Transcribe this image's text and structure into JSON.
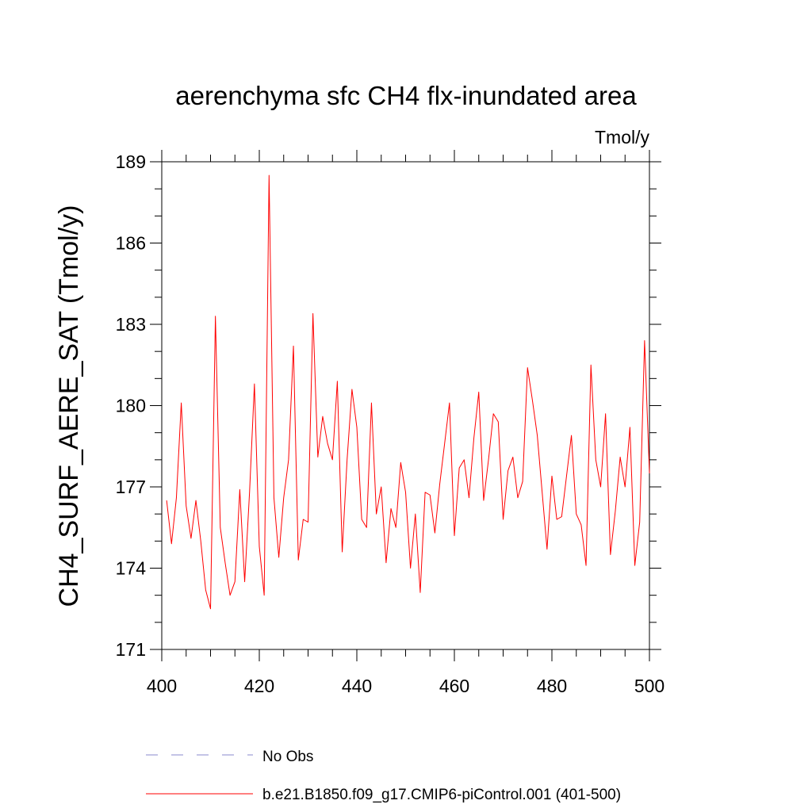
{
  "chart_data": {
    "type": "line",
    "title": "aerenchyma sfc CH4 flx-inundated area",
    "units": "Tmol/y",
    "xlabel": "",
    "ylabel": "CH4_SURF_AERE_SAT  (Tmol/y)",
    "xlim": [
      400,
      500
    ],
    "ylim": [
      171,
      189
    ],
    "xticks": [
      "400",
      "420",
      "440",
      "460",
      "480",
      "500"
    ],
    "yticks": [
      "171",
      "174",
      "177",
      "180",
      "183",
      "186",
      "189"
    ],
    "grid": false,
    "legend_position": "bottom-left",
    "series": [
      {
        "name": "b.e21.B1850.f09_g17.CMIP6-piControl.001 (401-500)",
        "color": "#ff0000",
        "style": "solid",
        "x": [
          401,
          402,
          403,
          404,
          405,
          406,
          407,
          408,
          409,
          410,
          411,
          412,
          413,
          414,
          415,
          416,
          417,
          418,
          419,
          420,
          421,
          422,
          423,
          424,
          425,
          426,
          427,
          428,
          429,
          430,
          431,
          432,
          433,
          434,
          435,
          436,
          437,
          438,
          439,
          440,
          441,
          442,
          443,
          444,
          445,
          446,
          447,
          448,
          449,
          450,
          451,
          452,
          453,
          454,
          455,
          456,
          457,
          458,
          459,
          460,
          461,
          462,
          463,
          464,
          465,
          466,
          467,
          468,
          469,
          470,
          471,
          472,
          473,
          474,
          475,
          476,
          477,
          478,
          479,
          480,
          481,
          482,
          483,
          484,
          485,
          486,
          487,
          488,
          489,
          490,
          491,
          492,
          493,
          494,
          495,
          496,
          497,
          498,
          499,
          500
        ],
        "values": [
          176.5,
          174.9,
          176.6,
          180.1,
          176.3,
          175.1,
          176.5,
          175.0,
          173.2,
          172.5,
          183.3,
          175.5,
          174.2,
          173.0,
          173.5,
          176.9,
          173.5,
          176.8,
          180.8,
          174.8,
          173.0,
          188.5,
          176.6,
          174.4,
          176.6,
          178.0,
          182.2,
          174.3,
          175.8,
          175.7,
          183.4,
          178.1,
          179.6,
          178.6,
          178.0,
          180.9,
          174.6,
          178.0,
          180.6,
          179.2,
          175.8,
          175.5,
          180.1,
          176.0,
          177.0,
          174.2,
          176.2,
          175.5,
          177.9,
          176.8,
          174.0,
          176.0,
          173.1,
          176.8,
          176.7,
          175.3,
          177.1,
          178.6,
          180.1,
          175.2,
          177.7,
          178.0,
          176.6,
          178.8,
          180.5,
          176.5,
          178.0,
          179.7,
          179.4,
          175.8,
          177.6,
          178.1,
          176.6,
          177.2,
          181.4,
          180.2,
          178.9,
          176.8,
          174.7,
          177.4,
          175.8,
          175.9,
          177.4,
          178.9,
          176.0,
          175.6,
          174.1,
          181.5,
          178.0,
          177.0,
          179.7,
          174.5,
          176.1,
          178.1,
          177.0,
          179.2,
          174.1,
          175.7,
          182.4,
          177.5
        ]
      }
    ],
    "reference_series": {
      "name": "No Obs",
      "color": "#8888cc",
      "style": "dashed"
    }
  }
}
